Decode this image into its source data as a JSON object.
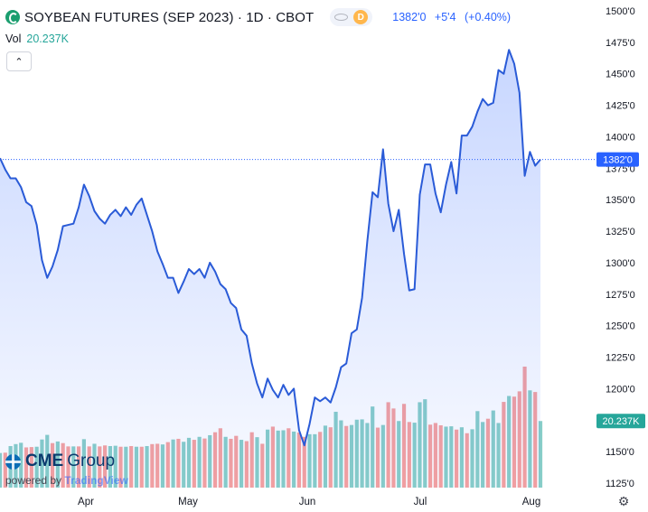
{
  "header": {
    "title": "SOYBEAN FUTURES (SEP 2023) · 1D · CBOT",
    "interval_badge": "D",
    "quote_last": "1382'0",
    "quote_change": "+5'4",
    "quote_change_pct": "(+0.40%)",
    "volume_label": "Vol",
    "volume_value": "20.237K"
  },
  "branding": {
    "logo_text_1": "CME",
    "logo_text_2": "Group",
    "powered_by": "powered by",
    "powered_brand": "TradingView"
  },
  "colors": {
    "line": "#2a5bd7",
    "area": "#2962ff",
    "vol_up": "#26a69a",
    "vol_down": "#ef5350",
    "last_price_badge": "#2962ff",
    "volume_badge": "#26a69a"
  },
  "chart_data": {
    "type": "area",
    "title": "SOYBEAN FUTURES (SEP 2023) · 1D · CBOT",
    "xlabel": "",
    "ylabel": "",
    "x_tick_labels": [
      "Apr",
      "May",
      "Jun",
      "Jul",
      "Aug"
    ],
    "y_tick_labels": [
      "1125'0",
      "1150'0",
      "1175'0",
      "1200'0",
      "1225'0",
      "1250'0",
      "1275'0",
      "1300'0",
      "1325'0",
      "1350'0",
      "1375'0",
      "1400'0",
      "1425'0",
      "1450'0",
      "1475'0",
      "1500'0"
    ],
    "ylim": [
      1120,
      1502
    ],
    "last_price": 1382,
    "last_price_label": "1382'0",
    "volume_label": "20.237K",
    "grid": false,
    "series": [
      {
        "values": [
          1383,
          1374,
          1367,
          1367,
          1360,
          1348,
          1345,
          1330,
          1302,
          1288,
          1297,
          1310,
          1329,
          1330,
          1331,
          1344,
          1362,
          1353,
          1341,
          1335,
          1331,
          1338,
          1342,
          1337,
          1344,
          1338,
          1346,
          1351,
          1338,
          1325,
          1309,
          1299,
          1288,
          1288,
          1276,
          1285,
          1295,
          1291,
          1295,
          1288,
          1300,
          1293,
          1283,
          1279,
          1268,
          1264,
          1247,
          1242,
          1220,
          1204,
          1193,
          1208,
          1199,
          1193,
          1203,
          1195,
          1200,
          1167,
          1155,
          1172,
          1193,
          1190,
          1193,
          1189,
          1201,
          1217,
          1220,
          1244,
          1247,
          1272,
          1317,
          1356,
          1352,
          1390,
          1347,
          1325,
          1342,
          1307,
          1278,
          1279,
          1354,
          1378,
          1378,
          1355,
          1340,
          1362,
          1380,
          1355,
          1401,
          1401,
          1408,
          1420,
          1430,
          1425,
          1427,
          1453,
          1450,
          1469,
          1458,
          1435,
          1369,
          1388,
          1377,
          1382
        ]
      }
    ],
    "volume": {
      "values": [
        10.5,
        10.6,
        12.6,
        13.2,
        13.6,
        12.2,
        12.3,
        12.4,
        14.6,
        16,
        13.5,
        14,
        13.5,
        12.5,
        12.5,
        12.5,
        14.7,
        12.5,
        13.3,
        12.5,
        12.8,
        12.6,
        12.7,
        12.4,
        12.4,
        12.6,
        12.4,
        12.4,
        12.6,
        13.2,
        13.3,
        13.1,
        13.8,
        14.6,
        14.8,
        13.9,
        15.1,
        14.5,
        15.4,
        14.9,
        15.9,
        16.8,
        18,
        15.4,
        14.8,
        15.7,
        14.5,
        14.1,
        16.8,
        15.3,
        13.3,
        17.6,
        18.5,
        17.3,
        17.4,
        18,
        17,
        16.7,
        15.4,
        16.2,
        16.2,
        16.9,
        18.8,
        18.3,
        23,
        20.4,
        18.7,
        19,
        20.6,
        20.7,
        19.6,
        24.6,
        18.2,
        19,
        25.9,
        24,
        20.2,
        25.4,
        19.9,
        19.7,
        25.9,
        26.8,
        19.1,
        19.6,
        18.9,
        18.5,
        18.6,
        17.6,
        18.3,
        16.5,
        17.7,
        23.2,
        19.9,
        20.9,
        23.4,
        19.6,
        26,
        27.8,
        27.6,
        29.2,
        36.7,
        29.5,
        29,
        20.2
      ],
      "up": [
        1,
        0,
        1,
        1,
        1,
        0,
        0,
        1,
        1,
        1,
        0,
        1,
        0,
        0,
        1,
        0,
        1,
        0,
        1,
        0,
        0,
        1,
        1,
        0,
        1,
        0,
        1,
        0,
        1,
        0,
        0,
        1,
        0,
        1,
        0,
        1,
        1,
        0,
        1,
        0,
        1,
        0,
        0,
        1,
        0,
        0,
        1,
        0,
        0,
        1,
        0,
        1,
        0,
        1,
        1,
        0,
        1,
        0,
        0,
        1,
        1,
        0,
        1,
        0,
        1,
        1,
        0,
        1,
        1,
        1,
        1,
        1,
        0,
        1,
        0,
        0,
        1,
        0,
        0,
        1,
        1,
        1,
        0,
        0,
        0,
        1,
        1,
        0,
        1,
        0,
        1,
        1,
        1,
        0,
        1,
        1,
        0,
        1,
        0,
        0,
        0,
        1,
        0,
        1
      ]
    }
  }
}
